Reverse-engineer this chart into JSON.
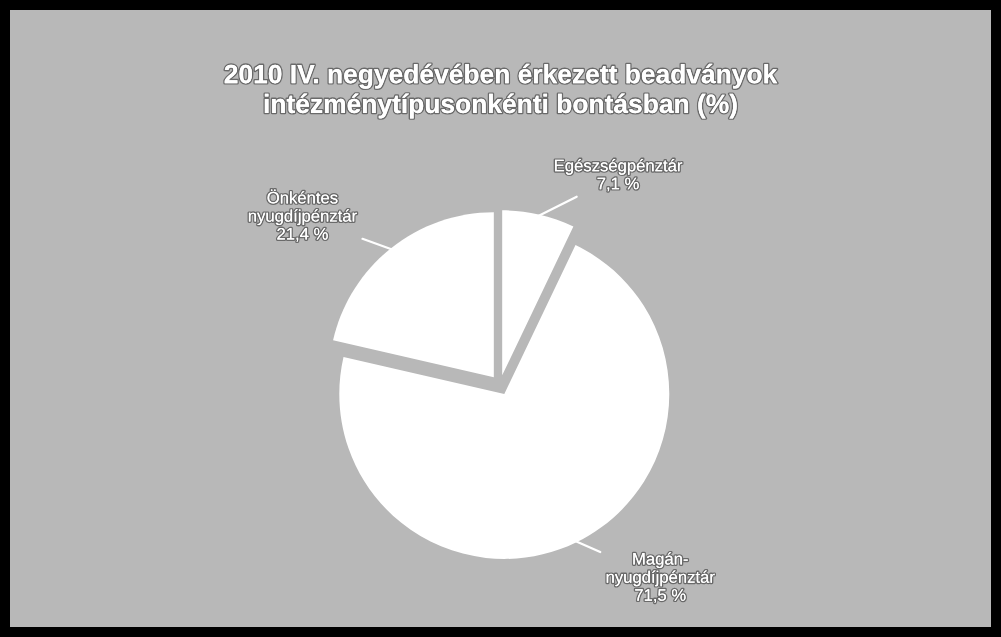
{
  "chart_data": {
    "type": "pie",
    "title": "2010 IV. negyedévében érkezett beadványok\nintézménytípusonkénti bontásban (%)",
    "categories": [
      "Egészségpénztár",
      "Magán-\nnyugdíjpénztár",
      "Önkéntes\nnyugdíjpénztár"
    ],
    "values": [
      7.1,
      71.5,
      21.4
    ],
    "value_labels": [
      "7,1 %",
      "71,5 %",
      "21,4 %"
    ],
    "colors": [
      "#ffffff",
      "#ffffff",
      "#ffffff"
    ]
  }
}
